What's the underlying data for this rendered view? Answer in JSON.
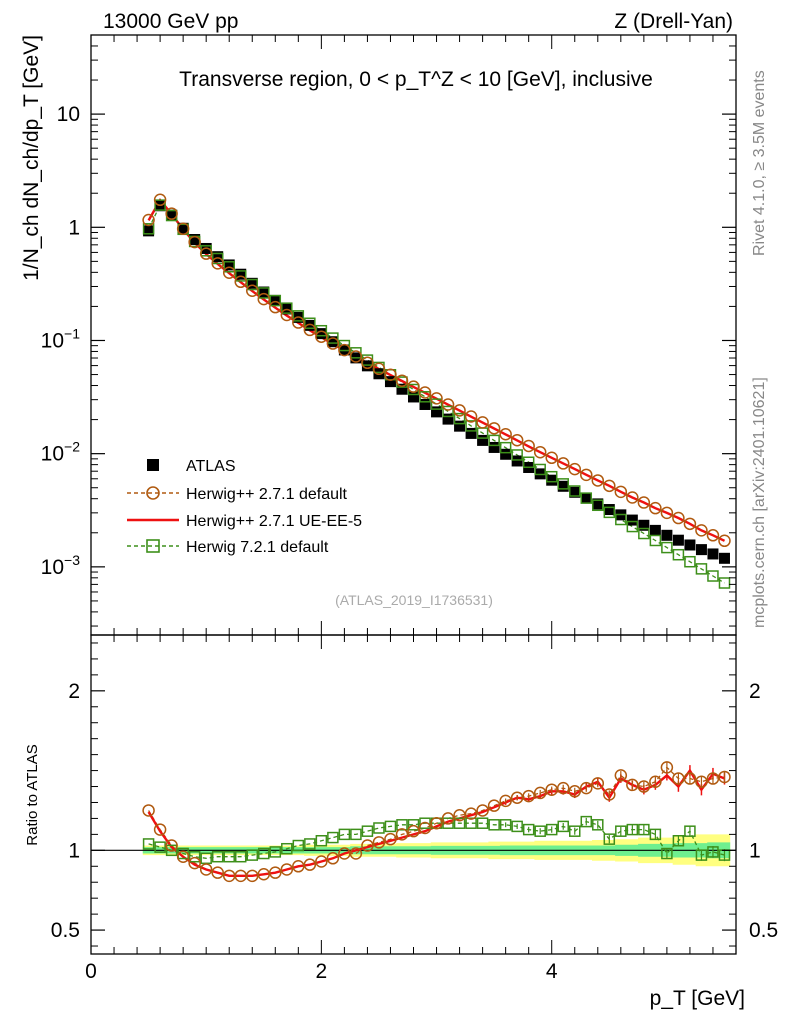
{
  "header": {
    "energy": "13000 GeV pp",
    "process": "Z (Drell-Yan)"
  },
  "side": {
    "rivet": "Rivet 4.1.0, ≥ 3.5M events",
    "mcplots": "mcplots.cern.ch [arXiv:2401.10621]"
  },
  "colors": {
    "atlas": "#000000",
    "h271": "#b05a10",
    "ueee5": "#ee1111",
    "h721": "#3d8f1a",
    "bandInner": "#6fef8f",
    "bandOuter": "#ffff80"
  },
  "chart_data": [
    {
      "type": "scatter",
      "title": "Transverse region, 0 < p_T^Z < 10 [GeV], inclusive",
      "watermark": "(ATLAS_2019_I1736531)",
      "ylabel": "1/N_ch dN_ch/dp_T [GeV]",
      "yscale": "log",
      "xlim": [
        0,
        5.6
      ],
      "ylim": [
        0.00025,
        50
      ],
      "y_ticks": [
        "10^-3",
        "10^-2",
        "10^-1",
        "1",
        "10"
      ],
      "legend_position": "lower-left",
      "x": [
        0.5,
        0.6,
        0.7,
        0.8,
        0.9,
        1.0,
        1.1,
        1.2,
        1.3,
        1.4,
        1.5,
        1.6,
        1.7,
        1.8,
        1.9,
        2.0,
        2.1,
        2.2,
        2.3,
        2.4,
        2.5,
        2.6,
        2.7,
        2.8,
        2.9,
        3.0,
        3.1,
        3.2,
        3.3,
        3.4,
        3.5,
        3.6,
        3.7,
        3.8,
        3.9,
        4.0,
        4.1,
        4.2,
        4.3,
        4.4,
        4.5,
        4.6,
        4.7,
        4.8,
        4.9,
        5.0,
        5.1,
        5.2,
        5.3,
        5.4,
        5.5
      ],
      "series": [
        {
          "name": "ATLAS",
          "marker": "filled-square",
          "values": [
            0.93,
            1.55,
            1.28,
            0.98,
            0.78,
            0.65,
            0.55,
            0.465,
            0.385,
            0.32,
            0.268,
            0.226,
            0.19,
            0.16,
            0.136,
            0.115,
            0.0975,
            0.0825,
            0.0702,
            0.0597,
            0.0508,
            0.0433,
            0.0371,
            0.0317,
            0.0272,
            0.0234,
            0.0202,
            0.0175,
            0.0151,
            0.0131,
            0.01135,
            0.00988,
            0.00862,
            0.00755,
            0.00663,
            0.00583,
            0.00515,
            0.00456,
            0.00405,
            0.0036,
            0.00321,
            0.00288,
            0.00259,
            0.00233,
            0.0021,
            0.0019,
            0.00172,
            0.00156,
            0.00142,
            0.0013,
            0.00119
          ]
        },
        {
          "name": "Herwig++ 2.7.1 default",
          "marker": "open-circle",
          "line": "dashed",
          "values": [
            1.16,
            1.75,
            1.32,
            0.97,
            0.74,
            0.585,
            0.48,
            0.397,
            0.33,
            0.275,
            0.232,
            0.197,
            0.168,
            0.144,
            0.124,
            0.108,
            0.094,
            0.0822,
            0.0722,
            0.0635,
            0.0562,
            0.0498,
            0.0441,
            0.0391,
            0.0347,
            0.0308,
            0.0272,
            0.0241,
            0.0213,
            0.0189,
            0.01675,
            0.01485,
            0.01315,
            0.0117,
            0.0103,
            0.0092,
            0.0082,
            0.0073,
            0.0065,
            0.0058,
            0.0052,
            0.0046,
            0.0041,
            0.0037,
            0.0033,
            0.003,
            0.0027,
            0.0024,
            0.0021,
            0.0019,
            0.0017
          ]
        },
        {
          "name": "Herwig++ 2.7.1 UE-EE-5",
          "marker": "none",
          "line": "solid",
          "values": [
            1.15,
            1.74,
            1.31,
            0.96,
            0.73,
            0.58,
            0.475,
            0.393,
            0.327,
            0.273,
            0.23,
            0.195,
            0.166,
            0.143,
            0.123,
            0.107,
            0.093,
            0.0815,
            0.0717,
            0.0632,
            0.0559,
            0.0495,
            0.0439,
            0.0389,
            0.0345,
            0.0306,
            0.0271,
            0.024,
            0.0212,
            0.0188,
            0.0167,
            0.0148,
            0.0131,
            0.0116,
            0.0103,
            0.0092,
            0.0082,
            0.0073,
            0.0065,
            0.0058,
            0.0052,
            0.0046,
            0.0041,
            0.0037,
            0.0033,
            0.003,
            0.0027,
            0.0024,
            0.0021,
            0.0019,
            0.0017
          ]
        },
        {
          "name": "Herwig 7.2.1 default",
          "marker": "open-square",
          "line": "dashed",
          "values": [
            0.97,
            1.57,
            1.27,
            0.96,
            0.75,
            0.62,
            0.53,
            0.448,
            0.372,
            0.312,
            0.263,
            0.225,
            0.193,
            0.165,
            0.142,
            0.122,
            0.105,
            0.0902,
            0.0778,
            0.0671,
            0.0578,
            0.0498,
            0.0429,
            0.0369,
            0.0318,
            0.0274,
            0.0236,
            0.0204,
            0.0176,
            0.0152,
            0.0131,
            0.0113,
            0.00974,
            0.0084,
            0.00725,
            0.00626,
            0.00541,
            0.00468,
            0.00405,
            0.0035,
            0.00303,
            0.00262,
            0.00227,
            0.00197,
            0.00171,
            0.00148,
            0.00128,
            0.00111,
            0.00096,
            0.00083,
            0.00072
          ]
        }
      ]
    },
    {
      "type": "scatter",
      "ylabel": "Ratio to ATLAS",
      "xlabel": "p_T [GeV]",
      "xlim": [
        0,
        5.6
      ],
      "ylim": [
        0.35,
        2.35
      ],
      "y_ticks": [
        0.5,
        1,
        2
      ],
      "x_ticks": [
        0,
        2,
        4
      ],
      "x": [
        0.5,
        0.6,
        0.7,
        0.8,
        0.9,
        1.0,
        1.1,
        1.2,
        1.3,
        1.4,
        1.5,
        1.6,
        1.7,
        1.8,
        1.9,
        2.0,
        2.1,
        2.2,
        2.3,
        2.4,
        2.5,
        2.6,
        2.7,
        2.8,
        2.9,
        3.0,
        3.1,
        3.2,
        3.3,
        3.4,
        3.5,
        3.6,
        3.7,
        3.8,
        3.9,
        4.0,
        4.1,
        4.2,
        4.3,
        4.4,
        4.5,
        4.6,
        4.7,
        4.8,
        4.9,
        5.0,
        5.1,
        5.2,
        5.3,
        5.4,
        5.5
      ],
      "band_inner_halfwidth": [
        0.02,
        0.02,
        0.02,
        0.02,
        0.02,
        0.02,
        0.02,
        0.02,
        0.02,
        0.02,
        0.02,
        0.02,
        0.02,
        0.02,
        0.02,
        0.02,
        0.02,
        0.02,
        0.025,
        0.025,
        0.025,
        0.025,
        0.025,
        0.025,
        0.025,
        0.028,
        0.028,
        0.028,
        0.028,
        0.028,
        0.028,
        0.03,
        0.03,
        0.03,
        0.03,
        0.03,
        0.03,
        0.03,
        0.03,
        0.03,
        0.03,
        0.035,
        0.035,
        0.04,
        0.04,
        0.04,
        0.045,
        0.045,
        0.045,
        0.05,
        0.05
      ],
      "band_outer_halfwidth": [
        0.03,
        0.03,
        0.03,
        0.03,
        0.03,
        0.03,
        0.03,
        0.03,
        0.03,
        0.03,
        0.03,
        0.03,
        0.03,
        0.03,
        0.035,
        0.035,
        0.035,
        0.035,
        0.04,
        0.04,
        0.04,
        0.04,
        0.045,
        0.045,
        0.045,
        0.05,
        0.05,
        0.05,
        0.05,
        0.05,
        0.055,
        0.055,
        0.055,
        0.055,
        0.06,
        0.06,
        0.06,
        0.06,
        0.06,
        0.065,
        0.065,
        0.07,
        0.07,
        0.08,
        0.08,
        0.08,
        0.09,
        0.09,
        0.1,
        0.1,
        0.1
      ],
      "series": [
        {
          "name": "Herwig++ 2.7.1 default",
          "values": [
            1.25,
            1.13,
            1.03,
            0.96,
            0.92,
            0.88,
            0.86,
            0.84,
            0.84,
            0.84,
            0.85,
            0.86,
            0.88,
            0.9,
            0.91,
            0.93,
            0.95,
            0.98,
            0.98,
            1.03,
            1.05,
            1.07,
            1.1,
            1.12,
            1.14,
            1.17,
            1.2,
            1.22,
            1.23,
            1.25,
            1.28,
            1.31,
            1.33,
            1.34,
            1.36,
            1.38,
            1.39,
            1.37,
            1.39,
            1.42,
            1.35,
            1.47,
            1.41,
            1.4,
            1.43,
            1.52,
            1.45,
            1.45,
            1.43,
            1.45,
            1.46
          ]
        },
        {
          "name": "Herwig++ 2.7.1 UE-EE-5",
          "values": [
            1.24,
            1.12,
            1.02,
            0.96,
            0.91,
            0.88,
            0.86,
            0.84,
            0.84,
            0.84,
            0.85,
            0.86,
            0.88,
            0.9,
            0.91,
            0.93,
            0.95,
            0.98,
            1.0,
            1.02,
            1.04,
            1.06,
            1.08,
            1.1,
            1.12,
            1.15,
            1.18,
            1.2,
            1.22,
            1.24,
            1.27,
            1.3,
            1.33,
            1.32,
            1.34,
            1.37,
            1.37,
            1.35,
            1.4,
            1.43,
            1.33,
            1.45,
            1.41,
            1.38,
            1.41,
            1.47,
            1.4,
            1.5,
            1.38,
            1.48,
            1.45
          ]
        },
        {
          "name": "Herwig 7.2.1 default",
          "values": [
            1.04,
            1.02,
            1.0,
            0.98,
            0.96,
            0.95,
            0.96,
            0.96,
            0.96,
            0.97,
            0.98,
            0.99,
            1.01,
            1.03,
            1.04,
            1.06,
            1.08,
            1.1,
            1.1,
            1.12,
            1.14,
            1.15,
            1.16,
            1.16,
            1.17,
            1.17,
            1.17,
            1.17,
            1.17,
            1.17,
            1.16,
            1.16,
            1.15,
            1.13,
            1.12,
            1.13,
            1.15,
            1.12,
            1.18,
            1.16,
            1.07,
            1.12,
            1.13,
            1.13,
            1.1,
            0.98,
            1.06,
            1.12,
            0.97,
            0.99,
            0.97
          ]
        }
      ]
    }
  ]
}
